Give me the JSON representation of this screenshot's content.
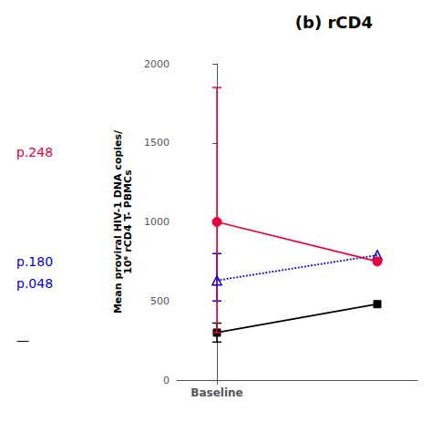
{
  "chart_data": {
    "type": "line",
    "title": "(b) rCD4",
    "ylabel": "Mean proviral HIV-1 DNA copies/\n10⁶ rCD4 T- PBMCs",
    "x": [
      0,
      1.2
    ],
    "xlim": [
      -0.3,
      1.5
    ],
    "xticks": [
      {
        "value": 0,
        "label": "Baseline"
      }
    ],
    "ylim": [
      0,
      2000
    ],
    "yticks": [
      0,
      500,
      1000,
      1500,
      2000
    ],
    "grid": false,
    "series": [
      {
        "color": "#000000",
        "marker": "square",
        "line_style": "solid",
        "values": [
          300,
          480
        ],
        "error_low": [
          60,
          null
        ],
        "error_high": [
          60,
          null
        ]
      },
      {
        "color": "#0000dd",
        "marker": "open_triangle",
        "line_style": "dotted",
        "values": [
          630,
          790
        ],
        "error_low": [
          130,
          null
        ],
        "error_high": [
          170,
          null
        ]
      },
      {
        "color": "#e8003a",
        "marker": "circle",
        "line_style": "solid",
        "values": [
          1000,
          750
        ],
        "error_low": [
          700,
          null
        ],
        "error_high": [
          850,
          null
        ]
      }
    ],
    "annotations": [
      {
        "text": "p.248",
        "color": "#e8003a"
      },
      {
        "text": "p.180",
        "color": "#0000dd"
      },
      {
        "text": "p.048",
        "color": "#0000dd"
      },
      {
        "text": "—",
        "color": "#000000"
      }
    ]
  }
}
